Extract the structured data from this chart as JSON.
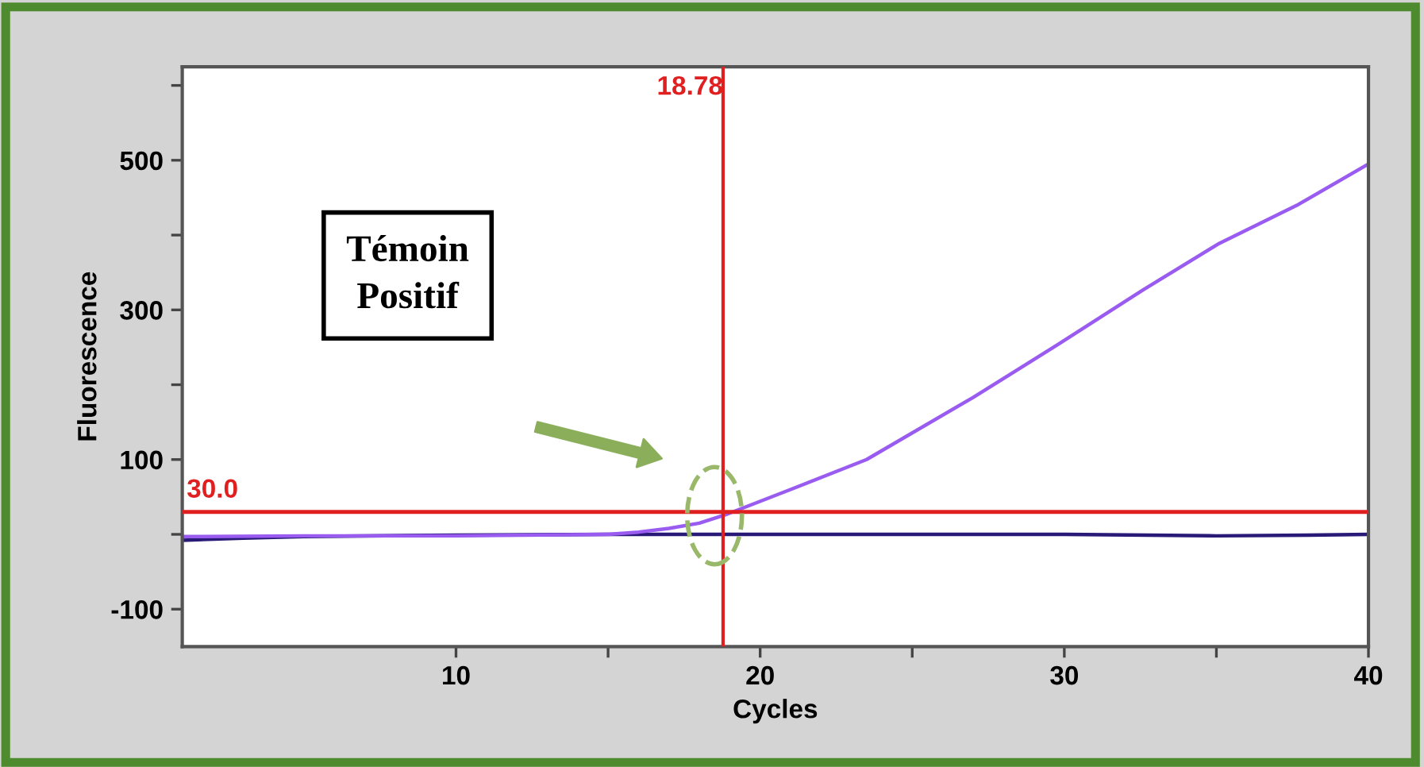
{
  "chart_data": {
    "type": "line",
    "xlabel": "Cycles",
    "ylabel": "Fluorescence",
    "xlim": [
      1,
      40
    ],
    "xticks": [
      10,
      {
        "value": 15,
        "label": null
      },
      20,
      {
        "value": 25,
        "label": null
      },
      30,
      {
        "value": 35,
        "label": null
      },
      40
    ],
    "ylim": [
      -150,
      625
    ],
    "yticks": [
      -100,
      {
        "value": 0,
        "label": null
      },
      100,
      {
        "value": 200,
        "label": null
      },
      300,
      {
        "value": 400,
        "label": null
      },
      500,
      {
        "value": 600,
        "label": null
      }
    ],
    "grid": false,
    "legend": false,
    "marker": "none",
    "line_style": "solid",
    "series": [
      {
        "color": "#2a1a78",
        "x": [
          1,
          3,
          5,
          10,
          15,
          20,
          25,
          30,
          35,
          38,
          40
        ],
        "values": [
          -8,
          -5,
          -3,
          -1,
          0,
          0,
          0,
          0,
          -2,
          -1,
          0
        ]
      },
      {
        "color": "#9a5cf0",
        "x": [
          1,
          5,
          10,
          15,
          16,
          17,
          18,
          18.85,
          21,
          23.5,
          27,
          29.8,
          32.6,
          35.1,
          37.7,
          40
        ],
        "values": [
          -3,
          -2,
          -2,
          0,
          3,
          8,
          15,
          26,
          60,
          100,
          183,
          254,
          327,
          389,
          441,
          495
        ]
      }
    ],
    "ref_lines": [
      {
        "axis": "y",
        "value": 30,
        "label": "30.0",
        "color": "#e02020"
      },
      {
        "axis": "x",
        "value": 18.78,
        "label": "18.78",
        "color": "#e02020"
      }
    ],
    "annotations": [
      "Témoin\nPositif"
    ]
  }
}
